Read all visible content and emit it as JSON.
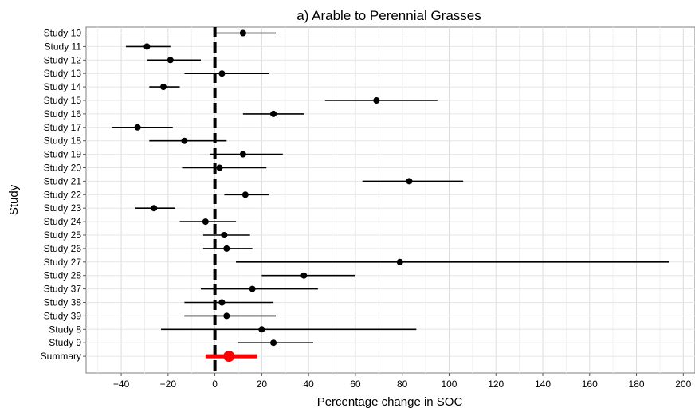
{
  "chart_data": {
    "type": "forest",
    "title": "a) Arable to Perennial Grasses",
    "xlabel": "Percentage change in SOC",
    "ylabel": "Study",
    "xlim": [
      -55,
      205
    ],
    "xticks": [
      -40,
      -20,
      0,
      20,
      40,
      60,
      80,
      100,
      120,
      140,
      160,
      180,
      200
    ],
    "reference_line": 0,
    "grid": true,
    "categories": [
      "Study 10",
      "Study 11",
      "Study 12",
      "Study 13",
      "Study 14",
      "Study 15",
      "Study 16",
      "Study 17",
      "Study 18",
      "Study 19",
      "Study 20",
      "Study 21",
      "Study 22",
      "Study 23",
      "Study 24",
      "Study 25",
      "Study 26",
      "Study 27",
      "Study 28",
      "Study 37",
      "Study 38",
      "Study 39",
      "Study 8",
      "Study 9",
      "Summary"
    ],
    "estimates": [
      12,
      -29,
      -19,
      3,
      -22,
      69,
      25,
      -33,
      -13,
      12,
      2,
      83,
      13,
      -26,
      -4,
      4,
      5,
      79,
      38,
      16,
      3,
      5,
      20,
      25,
      6
    ],
    "lower": [
      0,
      -38,
      -29,
      -13,
      -28,
      47,
      12,
      -44,
      -28,
      -2,
      -14,
      63,
      4,
      -34,
      -15,
      -5,
      -5,
      9,
      20,
      -6,
      -13,
      -13,
      -23,
      10,
      -4
    ],
    "upper": [
      26,
      -19,
      -6,
      23,
      -15,
      95,
      38,
      -18,
      5,
      29,
      22,
      106,
      23,
      -17,
      9,
      15,
      16,
      194,
      60,
      44,
      25,
      26,
      86,
      42,
      18
    ],
    "summary_color": "#ff0000",
    "point_color": "#000000"
  }
}
